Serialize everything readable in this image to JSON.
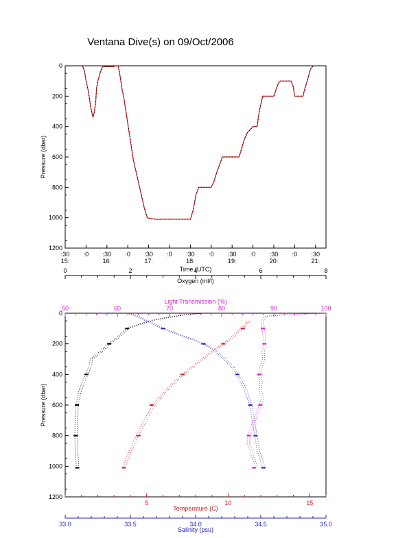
{
  "title": "Ventana Dive(s) on 09/Oct/2006",
  "colors": {
    "axis": "#000000",
    "red": "#d81a1a",
    "blue": "#2020c8",
    "magenta": "#d21cd2",
    "black": "#000000"
  },
  "chart_data": [
    {
      "type": "line",
      "xlabel": "Time (UTC)",
      "ylabel": "Pressure (dbar)",
      "ylim": [
        1200,
        0
      ],
      "yticks": [
        "0",
        "200",
        "400",
        "600",
        "800",
        "1000",
        "1200"
      ],
      "xlim": [
        "15:30",
        "21:45"
      ],
      "xticks_minor": [
        ":30",
        ":0",
        ":30",
        ":0",
        ":30",
        ":0",
        ":30",
        ":0",
        ":30",
        ":0",
        ":30",
        ":0",
        ":30"
      ],
      "xticks_hour": [
        "15:",
        "16:",
        "17:",
        "18:",
        "19:",
        "20:",
        "21:"
      ],
      "series": [
        {
          "color": "#d81a1a",
          "x": [
            "15:55",
            "15:58",
            "16:00",
            "16:03",
            "16:05",
            "16:07",
            "16:10",
            "16:12",
            "16:14",
            "16:15",
            "16:17",
            "16:20",
            "16:23",
            "16:26",
            "16:30",
            "16:35",
            "16:40",
            "16:42",
            "16:44",
            "16:46",
            "16:48",
            "16:50",
            "16:52",
            "16:54",
            "16:56",
            "16:58",
            "17:00",
            "17:02",
            "17:04",
            "17:06",
            "17:08",
            "17:12",
            "17:16",
            "17:20",
            "17:24",
            "17:28",
            "17:32",
            "17:36",
            "17:40",
            "17:44",
            "17:48",
            "18:30",
            "18:34",
            "18:36",
            "18:38",
            "18:42",
            "18:50",
            "19:00",
            "19:04",
            "19:08",
            "19:12",
            "19:16",
            "19:20",
            "19:40",
            "19:44",
            "19:48",
            "19:52",
            "20:00",
            "20:06",
            "20:08",
            "20:10",
            "20:12",
            "20:14",
            "20:15",
            "20:30",
            "20:33",
            "20:36",
            "20:39",
            "20:42",
            "20:43",
            "20:55",
            "20:58",
            "21:00",
            "21:12",
            "21:14",
            "21:18",
            "21:21",
            "21:23",
            "21:27"
          ],
          "y": [
            0,
            40,
            100,
            160,
            220,
            280,
            340,
            300,
            230,
            150,
            100,
            50,
            10,
            5,
            5,
            5,
            5,
            0,
            0,
            0,
            40,
            100,
            160,
            200,
            260,
            320,
            380,
            440,
            500,
            560,
            620,
            700,
            780,
            860,
            940,
            1000,
            1005,
            1008,
            1010,
            1010,
            1010,
            1010,
            950,
            900,
            850,
            800,
            800,
            800,
            760,
            700,
            650,
            600,
            600,
            600,
            540,
            480,
            440,
            400,
            400,
            330,
            280,
            240,
            200,
            200,
            200,
            160,
            120,
            100,
            100,
            100,
            100,
            140,
            200,
            200,
            160,
            100,
            50,
            20,
            0
          ]
        }
      ]
    },
    {
      "type": "scatter",
      "ylabel": "Pressure (dbar)",
      "ylim": [
        1200,
        0
      ],
      "yticks": [
        "0",
        "200",
        "400",
        "600",
        "800",
        "1000",
        "1200"
      ],
      "axes": {
        "oxygen": {
          "label": "Oxygen (ml/l)",
          "range": [
            0,
            8
          ],
          "ticks": [
            "0",
            "2",
            "4",
            "6",
            "8"
          ],
          "position": "top"
        },
        "light": {
          "label": "Light Transmission (%)",
          "range": [
            50,
            100
          ],
          "ticks": [
            "50",
            "60",
            "70",
            "80",
            "90",
            "100"
          ],
          "position": "top"
        },
        "temperature": {
          "label": "Temperature (C)",
          "range": [
            0,
            16
          ],
          "ticks": [
            "5",
            "10",
            "15"
          ],
          "position": "bottom"
        },
        "salinity": {
          "label": "Salinity (psu)",
          "range": [
            33.0,
            35.0
          ],
          "ticks": [
            "33.0",
            "33.5",
            "34.0",
            "34.5",
            "35.0"
          ],
          "position": "bottom"
        }
      },
      "series": [
        {
          "axis": "oxygen",
          "color": "#000000",
          "x": [
            4.2,
            3.7,
            3.2,
            2.7,
            2.3,
            1.9,
            1.75,
            1.6,
            1.35,
            1.1,
            0.8,
            0.75,
            0.65,
            0.55,
            0.46,
            0.4,
            0.36,
            0.33,
            0.32,
            0.34,
            0.37
          ],
          "y": [
            0,
            10,
            25,
            45,
            70,
            100,
            130,
            160,
            200,
            250,
            300,
            350,
            400,
            450,
            500,
            550,
            600,
            700,
            800,
            900,
            1010
          ]
        },
        {
          "axis": "light",
          "color": "#d21cd2",
          "x": [
            100,
            95,
            92,
            88.5,
            87.7,
            87.9,
            88.1,
            88.2,
            87.9,
            88.0,
            87.5,
            87.2,
            87.5,
            87.3,
            87.8,
            87.4,
            86.8,
            86.2,
            85.6,
            85.2,
            85.0,
            85.6,
            86.0,
            86.6,
            86.2
          ],
          "y": [
            0,
            5,
            10,
            20,
            50,
            100,
            150,
            200,
            250,
            300,
            350,
            400,
            450,
            500,
            550,
            600,
            650,
            700,
            750,
            800,
            850,
            900,
            950,
            1000,
            1010
          ]
        },
        {
          "axis": "temperature",
          "color": "#d81a1a",
          "x": [
            11.3,
            10.9,
            10.6,
            10.2,
            9.7,
            9.0,
            8.4,
            7.8,
            7.2,
            6.5,
            5.8,
            5.3,
            4.9,
            4.5,
            4.2,
            3.9,
            3.7,
            3.6
          ],
          "y": [
            50,
            90,
            120,
            160,
            200,
            250,
            300,
            350,
            400,
            470,
            550,
            620,
            700,
            780,
            850,
            920,
            970,
            1010
          ]
        },
        {
          "axis": "salinity",
          "color": "#2020c8",
          "x": [
            33.48,
            33.55,
            33.65,
            33.75,
            33.87,
            33.97,
            34.06,
            34.14,
            34.22,
            34.28,
            34.32,
            34.35,
            34.38,
            34.4,
            34.42,
            34.44,
            34.46,
            34.48,
            34.5,
            34.52
          ],
          "y": [
            0,
            20,
            60,
            100,
            140,
            170,
            200,
            240,
            300,
            350,
            400,
            450,
            500,
            550,
            600,
            700,
            800,
            900,
            950,
            1010
          ]
        }
      ]
    }
  ]
}
